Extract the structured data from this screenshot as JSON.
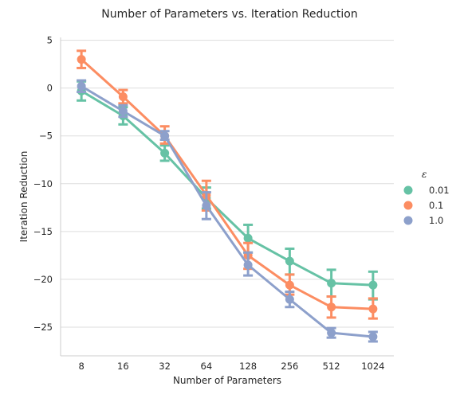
{
  "chart_data": {
    "type": "line",
    "title": "Number of Parameters vs. Iteration Reduction",
    "xlabel": "Number of Parameters",
    "ylabel": "Iteration Reduction",
    "categories": [
      "8",
      "16",
      "32",
      "64",
      "128",
      "256",
      "512",
      "1024"
    ],
    "ylim": [
      -28,
      5.3
    ],
    "yticks": [
      5,
      0,
      -5,
      -10,
      -15,
      -20,
      -25
    ],
    "grid": "horizontal",
    "legend": {
      "title": "ε",
      "position": "right"
    },
    "series": [
      {
        "name": "0.01",
        "color": "#66c2a5",
        "values": [
          -0.3,
          -2.9,
          -6.8,
          -11.5,
          -15.7,
          -18.1,
          -20.4,
          -20.6
        ],
        "ci_low": [
          -1.3,
          -3.8,
          -7.6,
          -12.6,
          -17.2,
          -19.5,
          -21.8,
          -22.1
        ],
        "ci_high": [
          0.7,
          -2.0,
          -6.0,
          -10.4,
          -14.3,
          -16.8,
          -19.0,
          -19.2
        ]
      },
      {
        "name": "0.1",
        "color": "#fc8d62",
        "values": [
          3.0,
          -0.9,
          -5.0,
          -11.2,
          -17.5,
          -20.6,
          -22.9,
          -23.1
        ],
        "ci_low": [
          2.1,
          -1.6,
          -5.8,
          -12.8,
          -18.9,
          -21.6,
          -24.0,
          -24.1
        ],
        "ci_high": [
          3.9,
          -0.2,
          -4.0,
          -9.7,
          -16.2,
          -19.5,
          -21.8,
          -22.0
        ]
      },
      {
        "name": "1.0",
        "color": "#8da0cb",
        "values": [
          0.2,
          -2.4,
          -5.0,
          -12.3,
          -18.5,
          -22.1,
          -25.6,
          -26.0
        ],
        "ci_low": [
          -0.4,
          -3.0,
          -5.4,
          -13.7,
          -19.6,
          -22.9,
          -26.1,
          -26.5
        ],
        "ci_high": [
          0.8,
          -1.8,
          -4.5,
          -10.9,
          -17.2,
          -21.3,
          -25.1,
          -25.5
        ]
      }
    ]
  }
}
